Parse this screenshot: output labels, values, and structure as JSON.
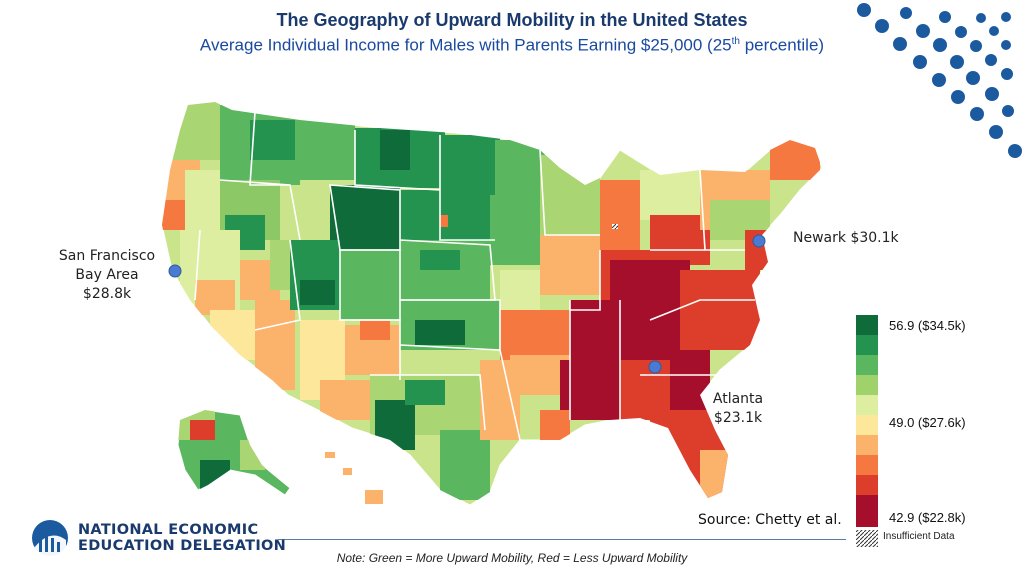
{
  "title": "The Geography of Upward Mobility in the United States",
  "subtitle_main": "Average Individual Income for Males with Parents Earning $25,000 (25",
  "subtitle_sup": "th",
  "subtitle_end": " percentile)",
  "cities": [
    {
      "name": "San Francisco",
      "name2": "Bay Area",
      "value": "$28.8k"
    },
    {
      "name": "Newark",
      "value": "$30.1k"
    },
    {
      "name": "Atlanta",
      "value": "$23.1k"
    }
  ],
  "legend": {
    "top": "56.9 ($34.5k)",
    "mid": "49.0 ($27.6k)",
    "bottom": "42.9 ($22.8k)",
    "insufficient": "Insufficient Data",
    "colors": [
      "#0f6b3a",
      "#23934f",
      "#5ab65f",
      "#a0d26c",
      "#ddeea0",
      "#fde79a",
      "#fbb26a",
      "#f4783f",
      "#dd3e2b",
      "#a50f2c"
    ]
  },
  "source": "Source: Chetty et al.",
  "note": "Note: Green = More Upward Mobility, Red = Less Upward Mobility",
  "logo": {
    "line1": "NATIONAL ECONOMIC",
    "line2": "EDUCATION DELEGATION"
  }
}
